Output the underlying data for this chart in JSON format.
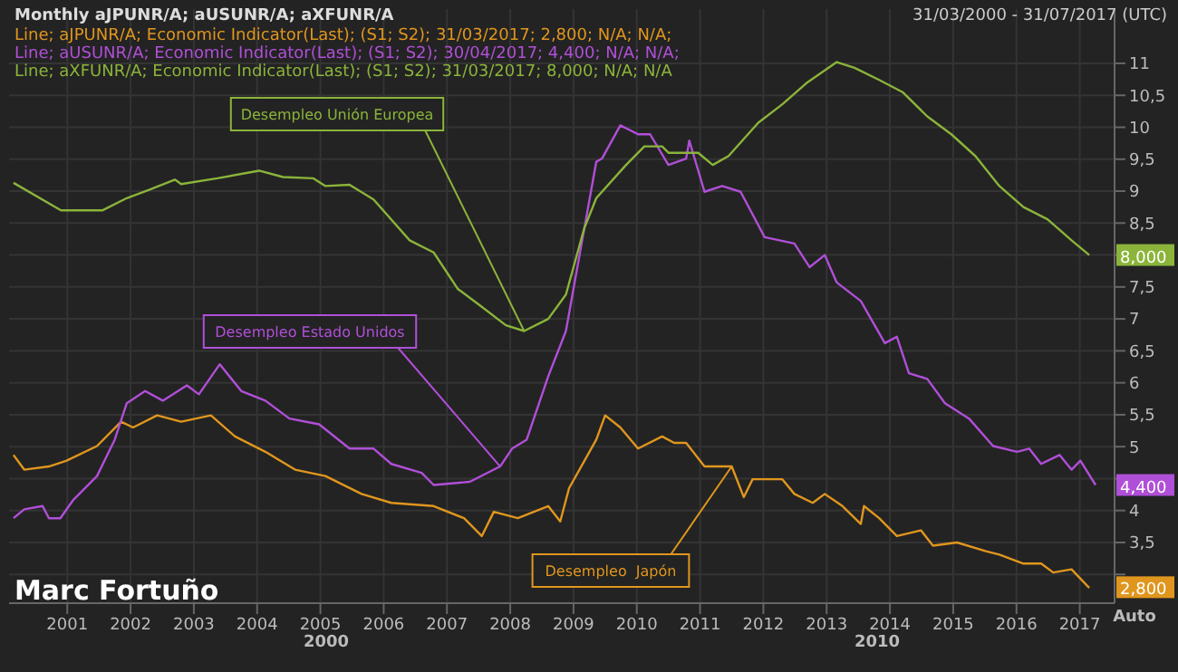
{
  "chart_data": {
    "type": "line",
    "title": "Monthly aJPUNR/A; aUSUNR/A; aXFUNR/A",
    "subtitle": "31/03/2000 - 31/07/2017 (UTC)",
    "xlim": [
      2000.08,
      2017.55
    ],
    "xticks": [
      2001,
      2002,
      2003,
      2004,
      2005,
      2006,
      2007,
      2008,
      2009,
      2010,
      2011,
      2012,
      2013,
      2014,
      2015,
      2016,
      2017
    ],
    "ylim": [
      2.55,
      11.85
    ],
    "yticks": [
      {
        "value": 3,
        "label": null
      },
      {
        "value": 3.5,
        "label": "3,5"
      },
      4,
      {
        "value": 4.5,
        "label": null
      },
      5,
      {
        "value": 5.5,
        "label": "5,5"
      },
      6,
      {
        "value": 6.5,
        "label": "6,5"
      },
      7,
      {
        "value": 7.5,
        "label": "7,5"
      },
      {
        "value": 8,
        "label": null
      },
      {
        "value": 8.5,
        "label": "8,5"
      },
      9,
      {
        "value": 9.5,
        "label": "9,5"
      },
      10,
      {
        "value": 10.5,
        "label": "10,5"
      },
      11
    ],
    "grid": true,
    "marker": "none",
    "line_style": "solid",
    "series": [
      {
        "name": "Desempleo  Japón",
        "color": "#e0961e",
        "x": [
          2000.15,
          2000.32,
          2000.71,
          2000.99,
          2001.47,
          2001.85,
          2002.04,
          2002.42,
          2002.8,
          2003.27,
          2003.65,
          2004.13,
          2004.6,
          2005.08,
          2005.65,
          2006.12,
          2006.79,
          2007.27,
          2007.55,
          2007.74,
          2008.12,
          2008.6,
          2008.79,
          2008.93,
          2009.36,
          2009.5,
          2009.74,
          2010.02,
          2010.4,
          2010.59,
          2010.78,
          2011.07,
          2011.5,
          2011.69,
          2011.83,
          2012.3,
          2012.49,
          2012.78,
          2012.97,
          2013.25,
          2013.54,
          2013.59,
          2013.83,
          2014.11,
          2014.49,
          2014.68,
          2015.06,
          2015.53,
          2015.73,
          2016.11,
          2016.39,
          2016.58,
          2016.87,
          2017.15
        ],
        "values": [
          4.87,
          4.64,
          4.69,
          4.78,
          5.01,
          5.39,
          5.3,
          5.49,
          5.39,
          5.49,
          5.16,
          4.92,
          4.64,
          4.54,
          4.26,
          4.12,
          4.07,
          3.88,
          3.6,
          3.98,
          3.88,
          4.07,
          3.83,
          4.35,
          5.11,
          5.49,
          5.3,
          4.97,
          5.16,
          5.06,
          5.06,
          4.69,
          4.69,
          4.21,
          4.49,
          4.49,
          4.26,
          4.12,
          4.26,
          4.07,
          3.79,
          4.07,
          3.88,
          3.6,
          3.69,
          3.45,
          3.5,
          3.36,
          3.31,
          3.17,
          3.17,
          3.03,
          3.08,
          2.79
        ]
      },
      {
        "name": "Desempleo Estado Unidos",
        "color": "#b04fd8",
        "x": [
          2000.15,
          2000.32,
          2000.61,
          2000.71,
          2000.89,
          2001.09,
          2001.47,
          2001.75,
          2001.94,
          2002.23,
          2002.51,
          2002.89,
          2003.08,
          2003.41,
          2003.75,
          2004.13,
          2004.51,
          2004.98,
          2005.46,
          2005.84,
          2006.12,
          2006.6,
          2006.79,
          2007.36,
          2007.84,
          2008.03,
          2008.26,
          2008.6,
          2008.88,
          2009.36,
          2009.45,
          2009.74,
          2010.02,
          2010.21,
          2010.5,
          2010.78,
          2010.83,
          2011.07,
          2011.35,
          2011.64,
          2012.02,
          2012.49,
          2012.73,
          2012.97,
          2013.16,
          2013.54,
          2013.92,
          2014.11,
          2014.3,
          2014.59,
          2014.87,
          2015.25,
          2015.63,
          2016.01,
          2016.2,
          2016.39,
          2016.68,
          2016.87,
          2017.01,
          2017.25
        ],
        "values": [
          3.88,
          4.02,
          4.07,
          3.88,
          3.88,
          4.16,
          4.54,
          5.11,
          5.68,
          5.87,
          5.72,
          5.96,
          5.82,
          6.29,
          5.87,
          5.72,
          5.44,
          5.35,
          4.97,
          4.97,
          4.73,
          4.59,
          4.4,
          4.45,
          4.69,
          4.97,
          5.11,
          6.1,
          6.81,
          9.46,
          9.51,
          10.03,
          9.89,
          9.89,
          9.41,
          9.51,
          9.79,
          8.99,
          9.08,
          8.99,
          8.28,
          8.18,
          7.81,
          8.0,
          7.57,
          7.28,
          6.62,
          6.72,
          6.15,
          6.06,
          5.68,
          5.44,
          5.01,
          4.92,
          4.97,
          4.73,
          4.87,
          4.64,
          4.78,
          4.4
        ]
      },
      {
        "name": "Desempleo Unión Europea",
        "color": "#8bb43a",
        "x": [
          2000.15,
          2000.9,
          2001.56,
          2001.94,
          2002.32,
          2002.7,
          2002.8,
          2003.37,
          2004.03,
          2004.41,
          2004.89,
          2005.08,
          2005.46,
          2005.84,
          2006.41,
          2006.79,
          2007.17,
          2007.55,
          2007.93,
          2008.22,
          2008.6,
          2008.88,
          2009.17,
          2009.36,
          2009.83,
          2010.12,
          2010.4,
          2010.5,
          2010.97,
          2011.2,
          2011.45,
          2011.92,
          2012.3,
          2012.68,
          2013.16,
          2013.44,
          2013.83,
          2014.2,
          2014.59,
          2014.97,
          2015.35,
          2015.73,
          2016.11,
          2016.49,
          2016.87,
          2017.15
        ],
        "values": [
          9.13,
          8.7,
          8.7,
          8.89,
          9.03,
          9.18,
          9.11,
          9.2,
          9.32,
          9.22,
          9.2,
          9.08,
          9.1,
          8.87,
          8.23,
          8.04,
          7.47,
          7.19,
          6.9,
          6.81,
          7.0,
          7.38,
          8.42,
          8.89,
          9.41,
          9.7,
          9.7,
          9.6,
          9.6,
          9.41,
          9.55,
          10.07,
          10.36,
          10.69,
          11.02,
          10.93,
          10.74,
          10.55,
          10.17,
          9.89,
          9.55,
          9.08,
          8.75,
          8.56,
          8.23,
          8.0
        ]
      }
    ],
    "annotations": [
      "Line; aJPUNR/A; Economic Indicator(Last); (S1; S2); 31/03/2017; 2,800; N/A; N/A;",
      "Line; aUSUNR/A; Economic Indicator(Last); (S1; S2); 30/04/2017; 4,400; N/A; N/A;",
      "Line; aXFUNR/A; Economic Indicator(Last); (S1; S2); 31/03/2017; 8,000; N/A; N/A",
      "Marc Fortuño",
      "2000",
      "2010",
      "Auto",
      {
        "text": "2,800",
        "y": 2.8
      },
      {
        "text": "4,400",
        "y": 4.4
      },
      {
        "text": "8,000",
        "y": 8
      }
    ]
  }
}
